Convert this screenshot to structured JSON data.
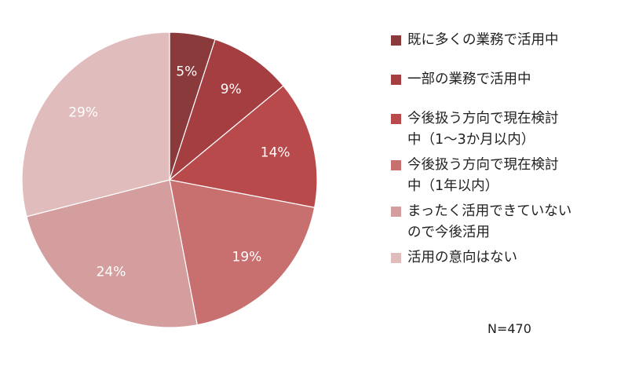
{
  "chart_data": {
    "type": "pie",
    "slices": [
      {
        "label": "既に多くの業務で活用中",
        "value": 5,
        "value_label": "5%",
        "color": "#8b3a3c"
      },
      {
        "label": "一部の業務で活用中",
        "value": 9,
        "value_label": "9%",
        "color": "#a43e41"
      },
      {
        "label": "今後扱う方向で現在検討\n中（1～3か月以内）",
        "value": 14,
        "value_label": "14%",
        "color": "#b94a4c"
      },
      {
        "label": "今後扱う方向で現在検討\n中（1年以内）",
        "value": 19,
        "value_label": "19%",
        "color": "#c8706f"
      },
      {
        "label": "まったく活用できていない\nので今後活用",
        "value": 24,
        "value_label": "24%",
        "color": "#d49e9e"
      },
      {
        "label": "活用の意向はない",
        "value": 29,
        "value_label": "29%",
        "color": "#e1bcbd"
      }
    ],
    "legend_position": "right",
    "note": "N=470"
  }
}
